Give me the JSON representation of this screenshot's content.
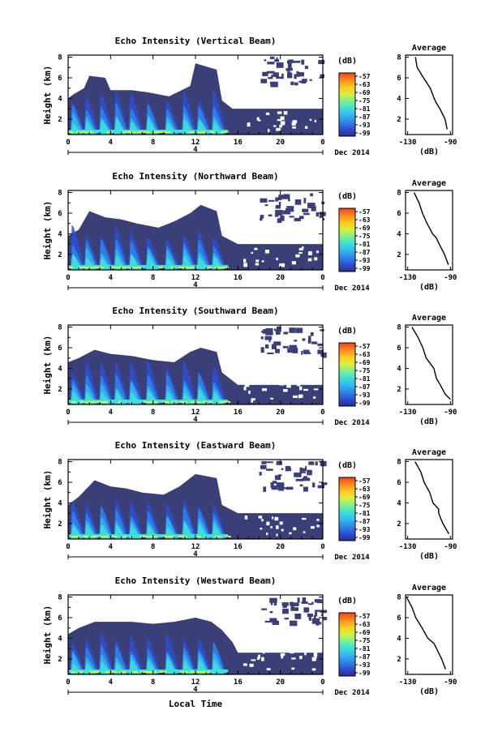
{
  "figure": {
    "xlabel": "Local Time",
    "ylabel": "Height (km)",
    "x_ticks": [
      "0",
      "4",
      "8",
      "12",
      "16",
      "20",
      "0"
    ],
    "date_label": "4",
    "month_label": "Dec 2014",
    "colorbar_unit": "(dB)",
    "colorbar_ticks": [
      "-57",
      "-63",
      "-69",
      "-75",
      "-81",
      "-87",
      "-93",
      "-99"
    ],
    "y_ticks": [
      "2",
      "4",
      "6",
      "8"
    ],
    "avg_title": "Average",
    "avg_xlabel": "(dB)",
    "avg_x_ticks": [
      "-130",
      "-90"
    ]
  },
  "colors": {
    "background_echo": "#3a3f78",
    "colorbar": [
      "#2b2d8c",
      "#2f4fd0",
      "#2f86e8",
      "#33b8ee",
      "#3fe0d8",
      "#7ef08e",
      "#d8f040",
      "#ffc820",
      "#ff8a20",
      "#f04020"
    ]
  },
  "chart_data": [
    {
      "type": "heatmap",
      "title": "Echo Intensity (Vertical Beam)",
      "xlabel": "",
      "ylabel": "Height (km)",
      "xlim": [
        0,
        24
      ],
      "ylim": [
        0.5,
        8.2
      ],
      "z_range": [
        -99,
        -57
      ],
      "echo_top_km": [
        [
          0,
          4.0
        ],
        [
          0.5,
          4.4
        ],
        [
          1.5,
          5.0
        ],
        [
          2.0,
          6.2
        ],
        [
          3.5,
          6.0
        ],
        [
          4.0,
          4.8
        ],
        [
          6.0,
          4.8
        ],
        [
          7.5,
          4.6
        ],
        [
          9.5,
          4.2
        ],
        [
          11.5,
          5.2
        ],
        [
          12.0,
          7.4
        ],
        [
          14.0,
          6.8
        ],
        [
          14.5,
          3.8
        ],
        [
          15.5,
          3.0
        ],
        [
          18.0,
          3.0
        ],
        [
          24.0,
          3.0
        ]
      ],
      "average_profile": {
        "x_db": [
          -122,
          -120,
          -116,
          -110,
          -106,
          -104,
          -100,
          -96,
          -92
        ],
        "height_km": [
          8.0,
          7.0,
          6.0,
          5.0,
          4.0,
          3.6,
          3.0,
          2.0,
          1.0
        ]
      }
    },
    {
      "type": "heatmap",
      "title": "Echo Intensity (Northward Beam)",
      "xlabel": "",
      "ylabel": "Height (km)",
      "xlim": [
        0,
        24
      ],
      "ylim": [
        0.5,
        8.2
      ],
      "z_range": [
        -99,
        -57
      ],
      "echo_top_km": [
        [
          0,
          3.8
        ],
        [
          1.0,
          4.4
        ],
        [
          2.0,
          6.2
        ],
        [
          3.5,
          5.6
        ],
        [
          5.0,
          5.4
        ],
        [
          6.5,
          5.0
        ],
        [
          8.5,
          4.6
        ],
        [
          10.0,
          5.2
        ],
        [
          11.5,
          6.0
        ],
        [
          12.5,
          6.8
        ],
        [
          14.0,
          6.2
        ],
        [
          14.5,
          3.8
        ],
        [
          16.0,
          3.0
        ],
        [
          24.0,
          3.0
        ]
      ],
      "average_profile": {
        "x_db": [
          -124,
          -120,
          -116,
          -112,
          -106,
          -104,
          -100,
          -96,
          -92
        ],
        "height_km": [
          8.0,
          7.0,
          6.0,
          5.0,
          4.0,
          3.6,
          3.0,
          2.0,
          1.0
        ]
      }
    },
    {
      "type": "heatmap",
      "title": "Echo Intensity (Southward Beam)",
      "xlabel": "",
      "ylabel": "Height (km)",
      "xlim": [
        0,
        24
      ],
      "ylim": [
        0.5,
        8.2
      ],
      "z_range": [
        -99,
        -57
      ],
      "echo_top_km": [
        [
          0,
          4.6
        ],
        [
          1.0,
          5.0
        ],
        [
          2.5,
          5.8
        ],
        [
          4.0,
          5.4
        ],
        [
          6.0,
          5.2
        ],
        [
          8.0,
          4.8
        ],
        [
          10.0,
          4.6
        ],
        [
          11.5,
          5.6
        ],
        [
          12.5,
          6.0
        ],
        [
          14.0,
          5.6
        ],
        [
          14.5,
          3.6
        ],
        [
          16.0,
          2.4
        ],
        [
          24.0,
          2.4
        ]
      ],
      "average_profile": {
        "x_db": [
          -126,
          -120,
          -116,
          -112,
          -106,
          -104,
          -100,
          -94,
          -90
        ],
        "height_km": [
          8.0,
          7.0,
          6.0,
          5.0,
          4.0,
          3.0,
          2.5,
          1.5,
          1.0
        ]
      }
    },
    {
      "type": "heatmap",
      "title": "Echo Intensity (Eastward Beam)",
      "xlabel": "",
      "ylabel": "Height (km)",
      "xlim": [
        0,
        24
      ],
      "ylim": [
        0.5,
        8.2
      ],
      "z_range": [
        -99,
        -57
      ],
      "echo_top_km": [
        [
          0,
          3.8
        ],
        [
          1.0,
          4.6
        ],
        [
          2.5,
          6.2
        ],
        [
          4.0,
          5.6
        ],
        [
          5.5,
          5.4
        ],
        [
          7.0,
          5.0
        ],
        [
          9.0,
          4.8
        ],
        [
          10.5,
          5.6
        ],
        [
          12.0,
          6.8
        ],
        [
          14.0,
          6.4
        ],
        [
          14.5,
          3.8
        ],
        [
          16.0,
          3.0
        ],
        [
          24.0,
          3.0
        ]
      ],
      "average_profile": {
        "x_db": [
          -122,
          -118,
          -114,
          -110,
          -106,
          -102,
          -100,
          -96,
          -92
        ],
        "height_km": [
          8.0,
          7.0,
          6.0,
          5.0,
          4.0,
          3.4,
          3.0,
          2.0,
          1.0
        ]
      }
    },
    {
      "type": "heatmap",
      "title": "Echo Intensity (Westward Beam)",
      "xlabel": "Local Time",
      "ylabel": "Height (km)",
      "xlim": [
        0,
        24
      ],
      "ylim": [
        0.5,
        8.2
      ],
      "z_range": [
        -99,
        -57
      ],
      "echo_top_km": [
        [
          0,
          4.4
        ],
        [
          1.0,
          5.0
        ],
        [
          2.5,
          5.6
        ],
        [
          4.0,
          5.6
        ],
        [
          6.0,
          5.6
        ],
        [
          8.0,
          5.4
        ],
        [
          10.0,
          5.6
        ],
        [
          12.0,
          6.0
        ],
        [
          13.5,
          5.6
        ],
        [
          14.5,
          4.8
        ],
        [
          15.5,
          3.6
        ],
        [
          16.0,
          2.6
        ],
        [
          24.0,
          2.6
        ]
      ],
      "average_profile": {
        "x_db": [
          -130,
          -126,
          -122,
          -116,
          -110,
          -106,
          -104,
          -98,
          -94
        ],
        "height_km": [
          8.0,
          7.0,
          6.0,
          5.0,
          4.0,
          3.5,
          3.0,
          2.0,
          1.0
        ]
      }
    }
  ]
}
